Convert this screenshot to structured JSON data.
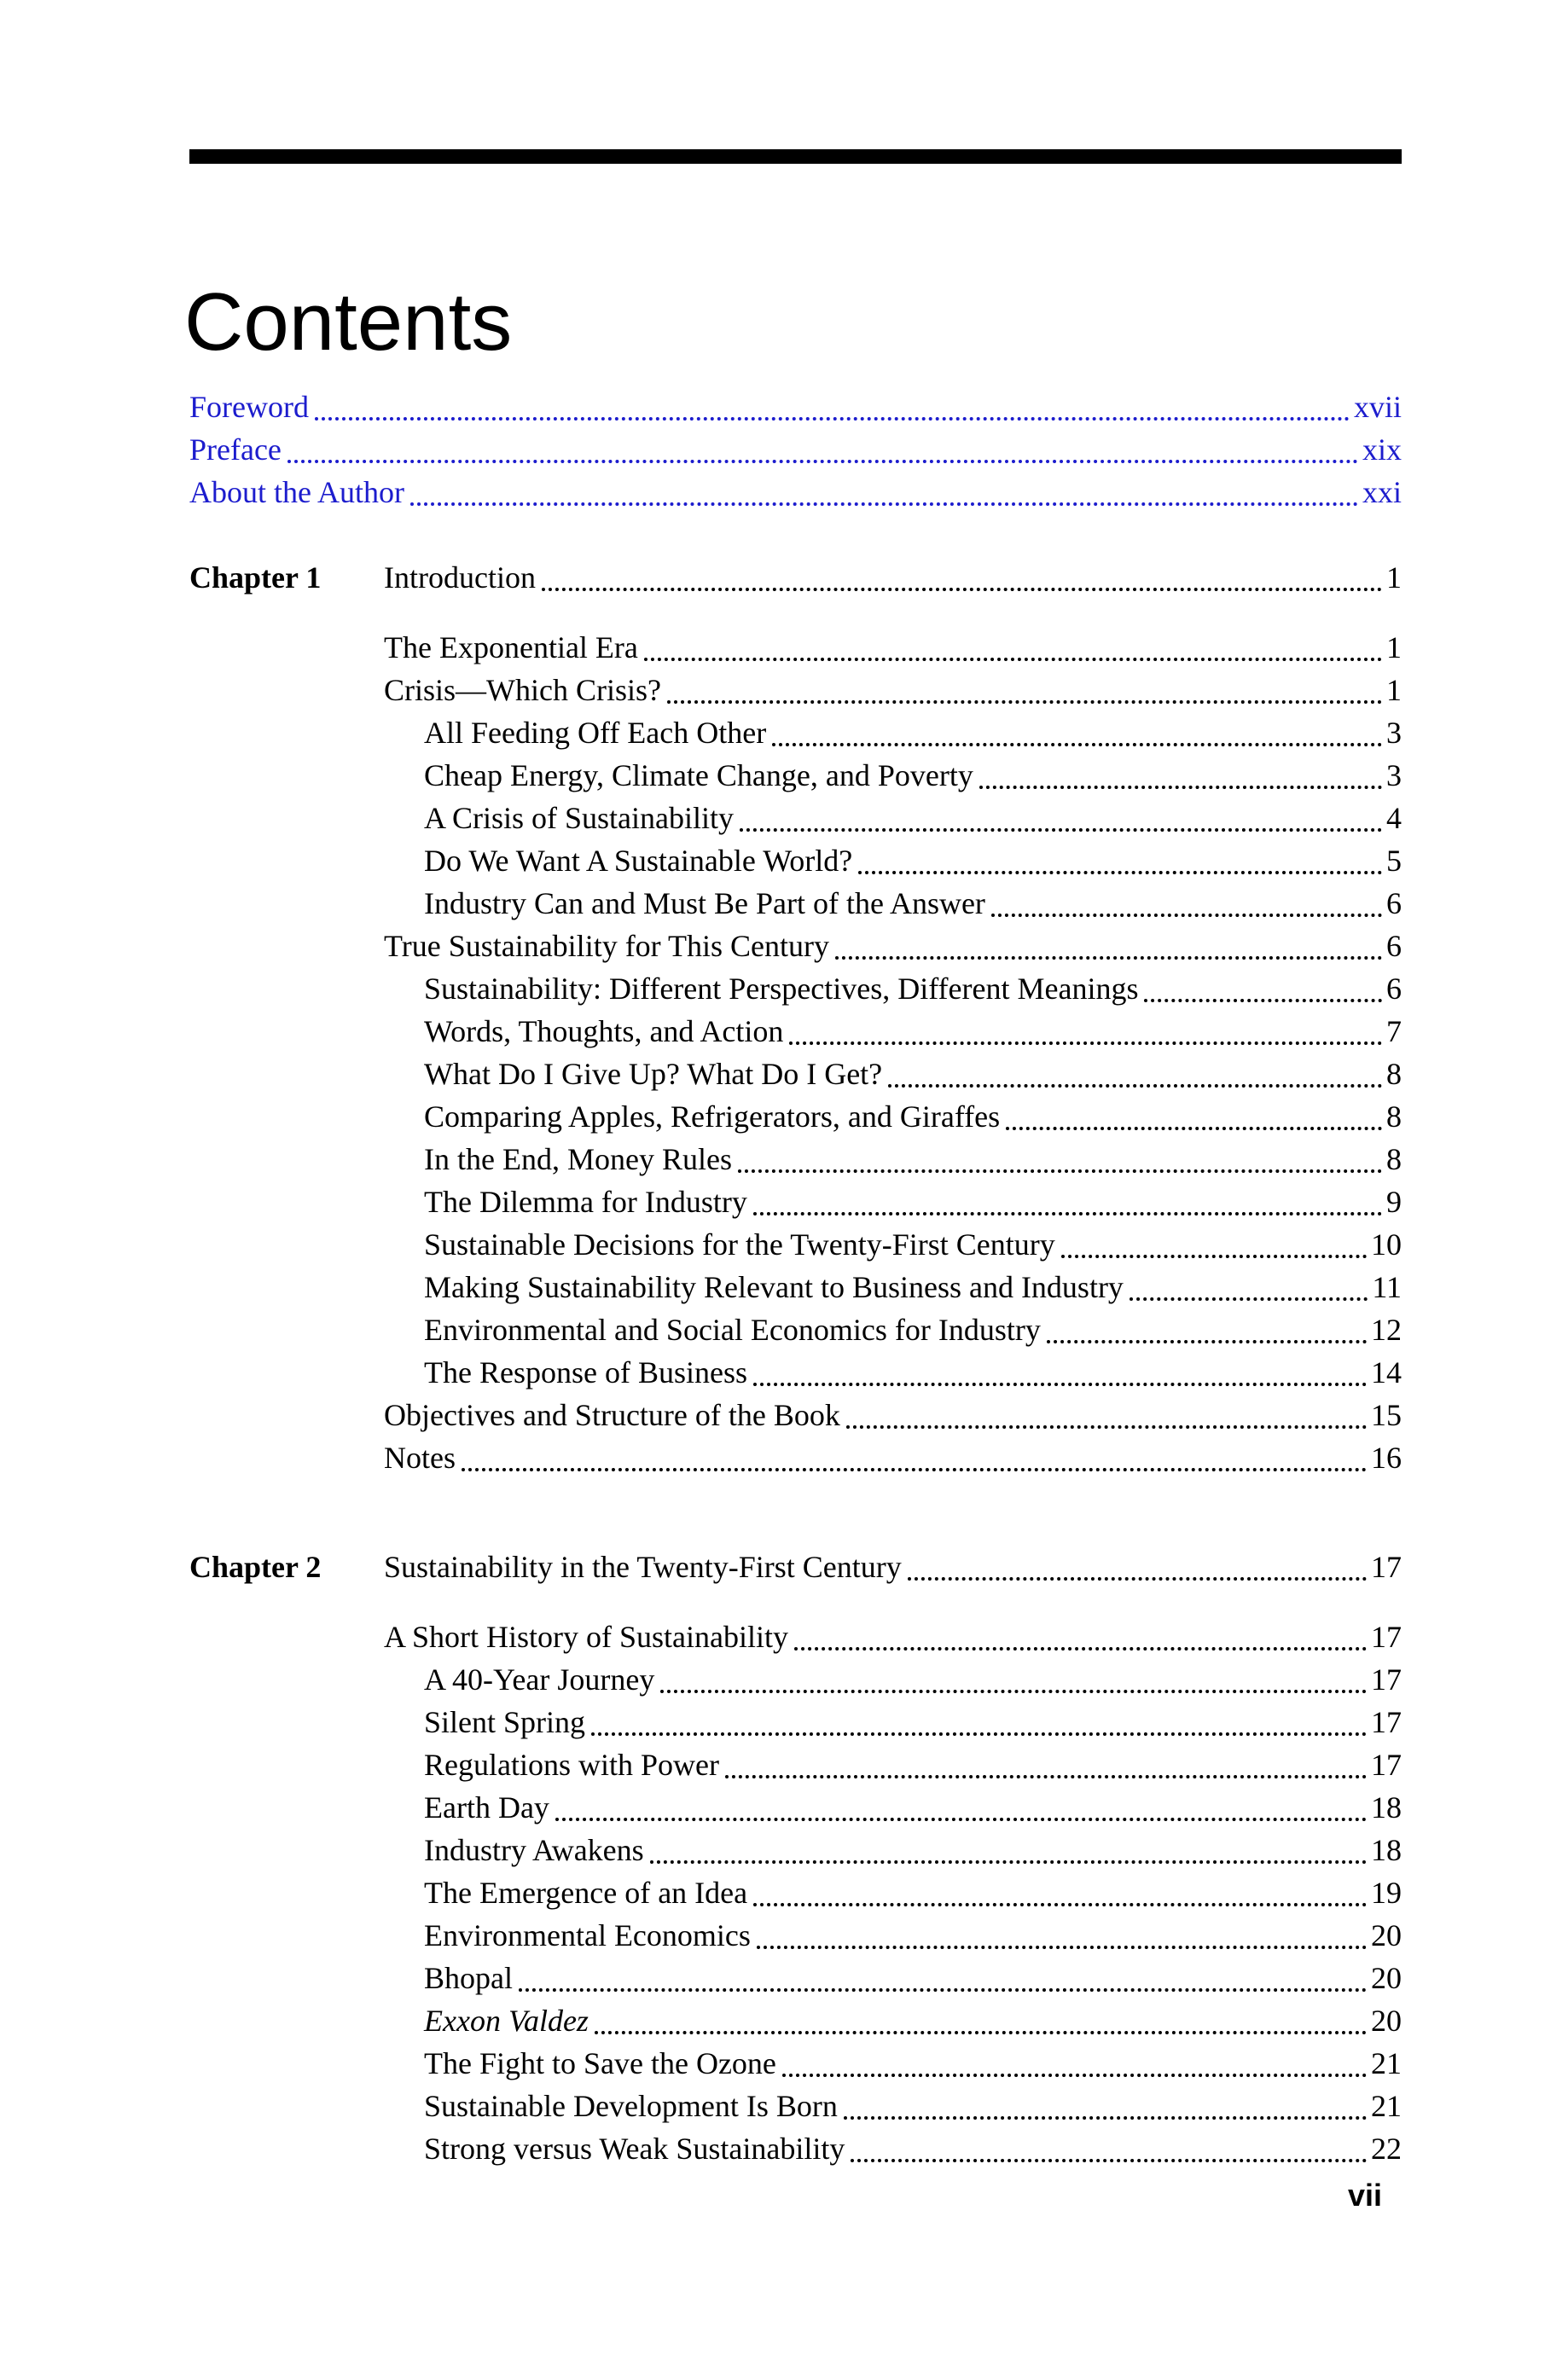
{
  "page": {
    "title": "Contents",
    "page_number": "vii",
    "link_color": "#1c1ccd"
  },
  "front_matter": [
    {
      "label": "Foreword",
      "page": "xvii"
    },
    {
      "label": "Preface",
      "page": "xix"
    },
    {
      "label": "About the Author",
      "page": "xxi"
    }
  ],
  "chapters": [
    {
      "label": "Chapter 1",
      "title": "Introduction",
      "page": "1",
      "entries": [
        {
          "text": "The Exponential Era",
          "page": "1",
          "level": 1
        },
        {
          "text": "Crisis—Which Crisis?",
          "page": "1",
          "level": 1
        },
        {
          "text": "All Feeding Off Each Other",
          "page": "3",
          "level": 2
        },
        {
          "text": "Cheap Energy, Climate Change, and Poverty",
          "page": "3",
          "level": 2
        },
        {
          "text": "A Crisis of Sustainability",
          "page": "4",
          "level": 2
        },
        {
          "text": "Do We Want A Sustainable World?",
          "page": "5",
          "level": 2
        },
        {
          "text": "Industry Can and Must Be Part of the Answer",
          "page": "6",
          "level": 2
        },
        {
          "text": "True Sustainability for This Century",
          "page": "6",
          "level": 1
        },
        {
          "text": "Sustainability: Different Perspectives, Different Meanings",
          "page": "6",
          "level": 2
        },
        {
          "text": "Words, Thoughts, and Action",
          "page": "7",
          "level": 2
        },
        {
          "text": "What Do I Give Up? What Do I Get?",
          "page": "8",
          "level": 2
        },
        {
          "text": "Comparing Apples, Refrigerators, and Giraffes",
          "page": "8",
          "level": 2
        },
        {
          "text": "In the End, Money Rules",
          "page": "8",
          "level": 2
        },
        {
          "text": "The Dilemma for Industry",
          "page": "9",
          "level": 2
        },
        {
          "text": "Sustainable Decisions for the Twenty-First Century",
          "page": "10",
          "level": 2
        },
        {
          "text": "Making Sustainability Relevant to Business and Industry",
          "page": "11",
          "level": 2
        },
        {
          "text": "Environmental and Social Economics for Industry",
          "page": "12",
          "level": 2
        },
        {
          "text": "The Response of Business",
          "page": "14",
          "level": 2
        },
        {
          "text": "Objectives and Structure of the Book",
          "page": "15",
          "level": 1
        },
        {
          "text": "Notes",
          "page": "16",
          "level": 1
        }
      ]
    },
    {
      "label": "Chapter 2",
      "title": "Sustainability in the Twenty-First Century",
      "page": "17",
      "entries": [
        {
          "text": "A Short History of Sustainability",
          "page": "17",
          "level": 1
        },
        {
          "text": "A 40-Year Journey",
          "page": "17",
          "level": 2
        },
        {
          "text": "Silent Spring",
          "page": "17",
          "level": 2
        },
        {
          "text": "Regulations with Power",
          "page": "17",
          "level": 2
        },
        {
          "text": "Earth Day",
          "page": "18",
          "level": 2
        },
        {
          "text": "Industry Awakens",
          "page": "18",
          "level": 2
        },
        {
          "text": "The Emergence of an Idea",
          "page": "19",
          "level": 2
        },
        {
          "text": "Environmental Economics",
          "page": "20",
          "level": 2
        },
        {
          "text": "Bhopal",
          "page": "20",
          "level": 2
        },
        {
          "text": "Exxon Valdez",
          "page": "20",
          "level": 2,
          "italic": true
        },
        {
          "text": "The Fight to Save the Ozone",
          "page": "21",
          "level": 2
        },
        {
          "text": "Sustainable Development Is Born",
          "page": "21",
          "level": 2
        },
        {
          "text": "Strong versus Weak Sustainability",
          "page": "22",
          "level": 2
        }
      ]
    }
  ]
}
